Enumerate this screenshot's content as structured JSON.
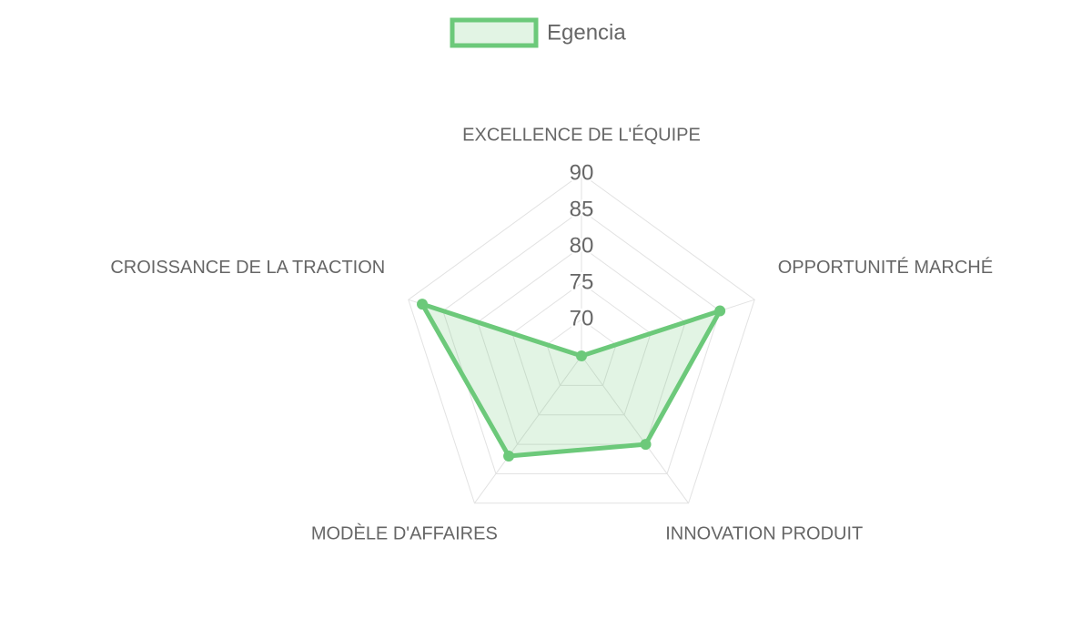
{
  "chart_data": {
    "type": "radar",
    "categories": [
      "EXCELLENCE DE L'ÉQUIPE",
      "OPPORTUNITÉ MARCHÉ",
      "INNOVATION PRODUIT",
      "MODÈLE D'AFFAIRES",
      "CROISSANCE DE LA TRACTION"
    ],
    "series": [
      {
        "name": "Egencia",
        "color": "#6cc97a",
        "values": [
          65,
          85,
          80,
          82,
          88
        ]
      }
    ],
    "rlim": [
      65,
      90
    ],
    "rticks": [
      70,
      75,
      80,
      85,
      90
    ],
    "grid": true,
    "legend_position": "top"
  }
}
